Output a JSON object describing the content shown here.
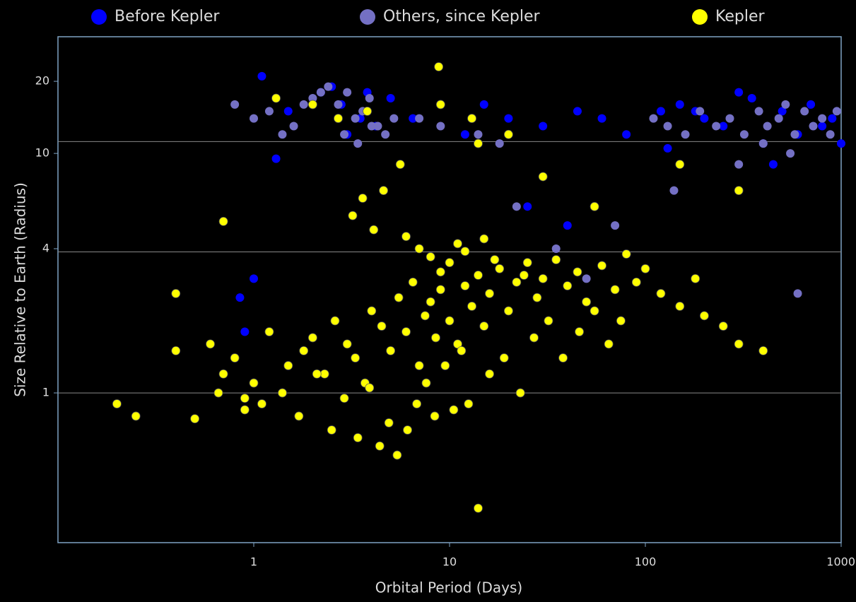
{
  "chart_data": {
    "type": "scatter",
    "x_label": "Orbital Period (Days)",
    "y_label": "Size Relative to Earth (Radius)",
    "xlog": true,
    "ylog": true,
    "xlim": [
      0.1,
      1000
    ],
    "ylim": [
      0.237,
      30.7
    ],
    "xticks": [
      1,
      10,
      100,
      1000
    ],
    "yticks": [
      1,
      4,
      10,
      20
    ],
    "gridlines": [
      1,
      3.88,
      11.2
    ],
    "series": [
      {
        "name": "Before Kepler",
        "color": "#0000ff",
        "x": [
          1.1,
          1.5,
          2.2,
          2.8,
          3.5,
          4.2,
          5.0,
          3.0,
          2.5,
          1.3,
          0.85,
          15,
          20,
          30,
          45,
          60,
          80,
          120,
          150,
          200,
          250,
          300,
          400,
          500,
          600,
          700,
          800,
          900,
          1000,
          350,
          450,
          130,
          1.0,
          0.9,
          3.8,
          25,
          40,
          6.5,
          12,
          180
        ],
        "values": [
          21,
          15,
          18,
          16,
          14,
          13,
          17,
          12,
          19,
          9.5,
          2.5,
          16,
          14,
          13,
          15,
          14,
          12,
          15,
          16,
          14,
          13,
          18,
          11,
          15,
          12,
          16,
          13,
          14,
          11,
          17,
          9,
          10.5,
          3.0,
          1.8,
          18,
          6,
          5,
          14,
          12,
          15
        ]
      },
      {
        "name": "Others, since Kepler",
        "color": "#7470c4",
        "x": [
          0.8,
          1.0,
          1.2,
          1.6,
          2.0,
          2.4,
          2.7,
          3.0,
          3.3,
          3.6,
          3.9,
          4.3,
          4.7,
          5.2,
          2.9,
          3.4,
          4.0,
          1.4,
          1.8,
          2.2,
          110,
          130,
          160,
          190,
          230,
          270,
          320,
          380,
          420,
          480,
          520,
          580,
          650,
          720,
          800,
          880,
          950,
          400,
          550,
          300,
          7,
          9,
          14,
          18,
          22,
          35,
          50,
          70,
          140,
          600
        ],
        "values": [
          16,
          14,
          15,
          13,
          17,
          19,
          16,
          18,
          14,
          15,
          17,
          13,
          12,
          14,
          12,
          11,
          13,
          12,
          16,
          18,
          14,
          13,
          12,
          15,
          13,
          14,
          12,
          15,
          13,
          14,
          16,
          12,
          15,
          13,
          14,
          12,
          15,
          11,
          10,
          9,
          14,
          13,
          12,
          11,
          6,
          4,
          3,
          5,
          7,
          2.6
        ]
      },
      {
        "name": "Kepler",
        "color": "#ffff00",
        "x": [
          0.2,
          0.25,
          0.4,
          0.5,
          0.6,
          0.7,
          0.8,
          0.9,
          1.0,
          1.2,
          1.5,
          1.8,
          2.0,
          2.3,
          2.6,
          3.0,
          3.3,
          3.7,
          4.0,
          4.5,
          5.0,
          5.5,
          6.0,
          6.5,
          7.0,
          7.5,
          8.0,
          8.5,
          9.0,
          10,
          11,
          12,
          13,
          14,
          15,
          16,
          18,
          20,
          22,
          25,
          28,
          30,
          35,
          40,
          45,
          50,
          60,
          70,
          80,
          90,
          100,
          120,
          150,
          180,
          200,
          250,
          300,
          400,
          0.7,
          0.9,
          1.1,
          1.4,
          1.7,
          2.1,
          2.5,
          2.9,
          3.4,
          3.9,
          4.4,
          4.9,
          5.4,
          6.1,
          6.8,
          7.6,
          8.4,
          9.5,
          10.5,
          11.5,
          12.5,
          14,
          16,
          19,
          23,
          27,
          32,
          38,
          46,
          55,
          65,
          75,
          3.2,
          3.6,
          4.1,
          4.6,
          2.7,
          9,
          13,
          20,
          0.4,
          0.66,
          8.8,
          14,
          3.8,
          5.6,
          2.0,
          1.3,
          30,
          55,
          150,
          300,
          6,
          7,
          8,
          9,
          10,
          11,
          12,
          15,
          17,
          24
        ],
        "values": [
          0.9,
          0.8,
          2.6,
          0.78,
          1.6,
          1.2,
          1.4,
          0.95,
          1.1,
          1.8,
          1.3,
          1.5,
          1.7,
          1.2,
          2.0,
          1.6,
          1.4,
          1.1,
          2.2,
          1.9,
          1.5,
          2.5,
          1.8,
          2.9,
          1.3,
          2.1,
          2.4,
          1.7,
          2.7,
          2.0,
          1.6,
          2.8,
          2.3,
          3.1,
          1.9,
          2.6,
          3.3,
          2.2,
          2.9,
          3.5,
          2.5,
          3.0,
          3.6,
          2.8,
          3.2,
          2.4,
          3.4,
          2.7,
          3.8,
          2.9,
          3.3,
          2.6,
          2.3,
          3.0,
          2.1,
          1.9,
          1.6,
          1.5,
          5.2,
          0.85,
          0.9,
          1.0,
          0.8,
          1.2,
          0.7,
          0.95,
          0.65,
          1.05,
          0.6,
          0.75,
          0.55,
          0.7,
          0.9,
          1.1,
          0.8,
          1.3,
          0.85,
          1.5,
          0.9,
          0.33,
          1.2,
          1.4,
          1.0,
          1.7,
          2.0,
          1.4,
          1.8,
          2.2,
          1.6,
          2.0,
          5.5,
          6.5,
          4.8,
          7.0,
          14,
          16,
          14,
          12,
          1.5,
          1.0,
          23,
          11,
          15,
          9,
          16,
          17,
          8,
          6,
          9,
          7,
          4.5,
          4.0,
          3.7,
          3.2,
          3.5,
          4.2,
          3.9,
          4.4,
          3.6,
          3.1
        ]
      }
    ]
  }
}
